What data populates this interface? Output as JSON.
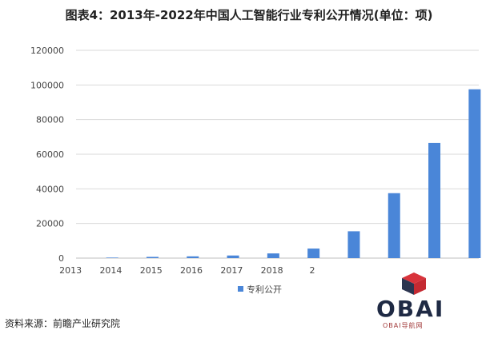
{
  "title": "图表4：2013年-2022年中国人工智能行业专利公开情况(单位：项)",
  "source": "资料来源：前瞻产业研究院",
  "logo": {
    "main": "OBAI",
    "sub": "OBAI导航网"
  },
  "chart_data": {
    "type": "bar",
    "categories": [
      "2013",
      "2014",
      "2015",
      "2016",
      "2017",
      "2018",
      "2",
      "",
      "",
      ""
    ],
    "series": [
      {
        "name": "专利公开",
        "values": [
          300,
          700,
          1000,
          1500,
          2700,
          5500,
          15500,
          37500,
          66500,
          97500
        ],
        "color": "#4a86d8"
      }
    ],
    "ylim": [
      0,
      120000
    ],
    "yticks": [
      0,
      20000,
      40000,
      60000,
      80000,
      100000,
      120000
    ],
    "grid": true,
    "legend": "bottom-center"
  }
}
